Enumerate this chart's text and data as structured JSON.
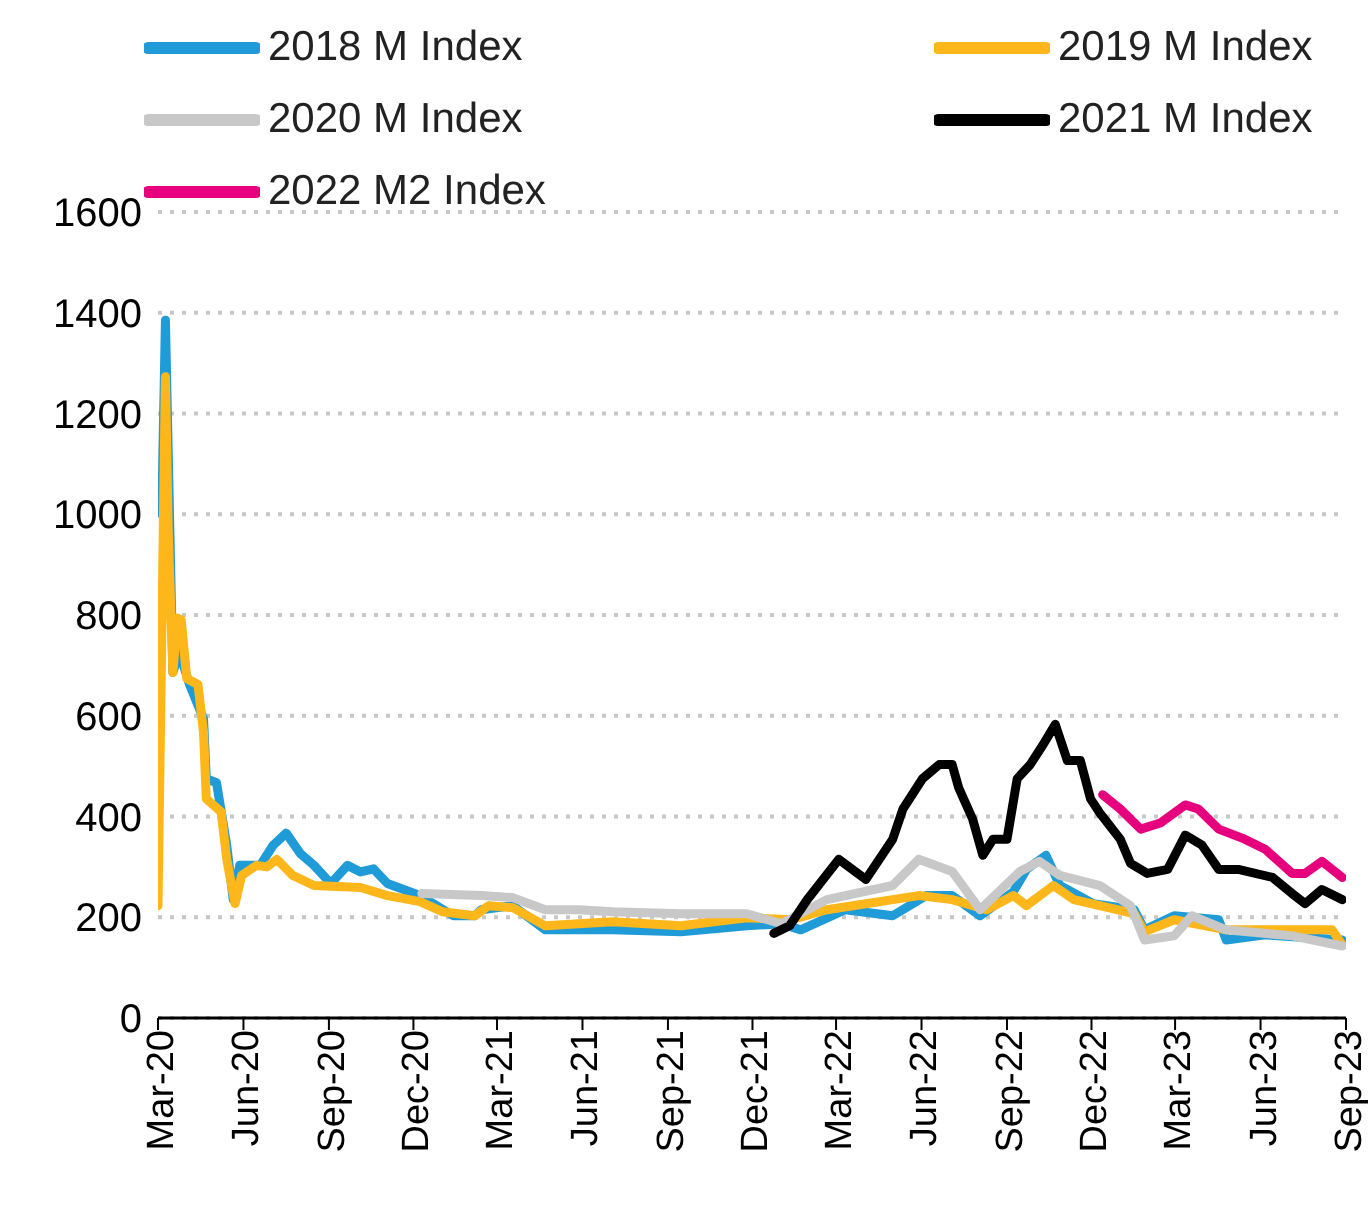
{
  "chart_data": {
    "type": "line",
    "xlim": [
      "2020-03-01",
      "2023-09-01"
    ],
    "xticks": [
      {
        "value": "2020-03",
        "label": "Mar-20"
      },
      {
        "value": "2020-06",
        "label": "Jun-20"
      },
      {
        "value": "2020-09",
        "label": "Sep-20"
      },
      {
        "value": "2020-12",
        "label": "Dec-20"
      },
      {
        "value": "2021-03",
        "label": "Mar-21"
      },
      {
        "value": "2021-06",
        "label": "Jun-21"
      },
      {
        "value": "2021-09",
        "label": "Sep-21"
      },
      {
        "value": "2021-12",
        "label": "Dec-21"
      },
      {
        "value": "2022-03",
        "label": "Mar-22"
      },
      {
        "value": "2022-06",
        "label": "Jun-22"
      },
      {
        "value": "2022-09",
        "label": "Sep-22"
      },
      {
        "value": "2022-12",
        "label": "Dec-22"
      },
      {
        "value": "2023-03",
        "label": "Mar-23"
      },
      {
        "value": "2023-06",
        "label": "Jun-23"
      },
      {
        "value": "2023-09",
        "label": "Sep-23"
      }
    ],
    "ylim": [
      0,
      1600
    ],
    "yticks": [
      0,
      200,
      400,
      600,
      800,
      1000,
      1200,
      1400,
      1600
    ],
    "grid": "y",
    "legend": "top",
    "marker": "none",
    "line_style": "solid",
    "series": [
      {
        "name": "2018 M Index",
        "color": "#1f9bd7",
        "x": [
          "2020-03-05",
          "2020-03-09",
          "2020-03-17",
          "2020-03-24",
          "2020-04-04",
          "2020-04-19",
          "2020-04-22",
          "2020-05-03",
          "2020-05-14",
          "2020-05-21",
          "2020-05-28",
          "2020-06-19",
          "2020-07-03",
          "2020-07-17",
          "2020-08-01",
          "2020-08-16",
          "2020-09-03",
          "2020-09-21",
          "2020-10-05",
          "2020-10-19",
          "2020-11-03",
          "2020-12-08",
          "2021-01-13",
          "2021-02-05",
          "2021-02-12",
          "2021-03-18",
          "2021-04-22",
          "2021-07-03",
          "2021-09-15",
          "2021-11-25",
          "2022-01-01",
          "2022-01-22",
          "2022-03-11",
          "2022-05-01",
          "2022-06-06",
          "2022-07-04",
          "2022-08-03",
          "2022-09-08",
          "2022-09-22",
          "2022-10-13",
          "2022-10-28",
          "2022-12-03",
          "2023-01-16",
          "2023-01-27",
          "2023-02-28",
          "2023-04-17",
          "2023-04-25",
          "2023-06-06",
          "2023-08-28"
        ],
        "values": [
          1000,
          1385,
          686,
          726,
          662,
          594,
          475,
          467,
          343,
          235,
          303,
          303,
          343,
          367,
          327,
          303,
          267,
          303,
          290,
          296,
          267,
          243,
          203,
          203,
          215,
          223,
          175,
          175,
          171,
          183,
          187,
          175,
          215,
          203,
          243,
          243,
          203,
          251,
          295,
          323,
          263,
          227,
          215,
          175,
          203,
          195,
          155,
          165,
          155
        ]
      },
      {
        "name": "2019 M Index",
        "color": "#fdb71a",
        "x": [
          "2020-03-01",
          "2020-03-09",
          "2020-03-12",
          "2020-03-17",
          "2020-03-22",
          "2020-03-26",
          "2020-04-01",
          "2020-04-13",
          "2020-04-19",
          "2020-04-22",
          "2020-05-08",
          "2020-05-14",
          "2020-05-23",
          "2020-05-30",
          "2020-06-15",
          "2020-06-26",
          "2020-07-07",
          "2020-07-24",
          "2020-08-16",
          "2020-10-05",
          "2020-11-03",
          "2020-12-08",
          "2021-01-01",
          "2021-02-05",
          "2021-02-20",
          "2021-03-18",
          "2021-04-22",
          "2021-07-03",
          "2021-09-15",
          "2021-11-25",
          "2022-01-12",
          "2022-02-19",
          "2022-05-29",
          "2022-07-04",
          "2022-08-10",
          "2022-09-08",
          "2022-09-22",
          "2022-10-21",
          "2022-11-12",
          "2023-01-16",
          "2023-01-27",
          "2023-02-28",
          "2023-04-25",
          "2023-08-17",
          "2023-08-28"
        ],
        "values": [
          223,
          1273,
          966,
          686,
          794,
          790,
          674,
          662,
          567,
          435,
          409,
          315,
          227,
          283,
          303,
          300,
          315,
          283,
          263,
          259,
          243,
          231,
          211,
          203,
          223,
          219,
          183,
          191,
          183,
          199,
          195,
          215,
          243,
          235,
          215,
          243,
          223,
          263,
          235,
          207,
          171,
          195,
          175,
          175,
          145
        ]
      },
      {
        "name": "2020 M Index",
        "color": "#c8c8c8",
        "x": [
          "2020-12-10",
          "2021-02-12",
          "2021-03-18",
          "2021-04-22",
          "2021-05-28",
          "2021-07-03",
          "2021-09-15",
          "2021-11-25",
          "2022-01-01",
          "2022-02-19",
          "2022-05-01",
          "2022-05-29",
          "2022-07-04",
          "2022-08-03",
          "2022-09-15",
          "2022-10-06",
          "2022-10-28",
          "2022-12-10",
          "2023-01-12",
          "2023-01-27",
          "2023-02-28",
          "2023-03-19",
          "2023-04-25",
          "2023-07-05",
          "2023-08-28"
        ],
        "values": [
          247,
          243,
          239,
          215,
          215,
          211,
          207,
          207,
          187,
          235,
          263,
          315,
          291,
          215,
          291,
          311,
          283,
          263,
          223,
          155,
          163,
          203,
          175,
          163,
          143
        ]
      },
      {
        "name": "2021 M Index",
        "color": "#000000",
        "x": [
          "2021-12-24",
          "2022-01-10",
          "2022-01-29",
          "2022-03-04",
          "2022-04-02",
          "2022-05-01",
          "2022-05-12",
          "2022-06-02",
          "2022-06-20",
          "2022-07-04",
          "2022-07-11",
          "2022-07-26",
          "2022-08-06",
          "2022-08-17",
          "2022-09-01",
          "2022-09-12",
          "2022-09-26",
          "2022-10-10",
          "2022-10-23",
          "2022-11-05",
          "2022-11-19",
          "2022-11-30",
          "2022-12-10",
          "2023-01-01",
          "2023-01-12",
          "2023-01-30",
          "2023-02-21",
          "2023-03-12",
          "2023-03-30",
          "2023-04-17",
          "2023-05-08",
          "2023-06-14",
          "2023-07-05",
          "2023-07-19",
          "2023-08-06",
          "2023-08-28"
        ],
        "values": [
          168,
          183,
          235,
          315,
          275,
          355,
          415,
          475,
          503,
          503,
          457,
          395,
          323,
          355,
          355,
          475,
          503,
          543,
          583,
          511,
          511,
          435,
          407,
          355,
          307,
          287,
          295,
          363,
          343,
          295,
          295,
          279,
          247,
          227,
          255,
          235
        ]
      },
      {
        "name": "2022 M2 Index",
        "color": "#e6007e",
        "x": [
          "2022-12-13",
          "2023-01-01",
          "2023-01-23",
          "2023-02-13",
          "2023-03-12",
          "2023-03-26",
          "2023-04-17",
          "2023-05-15",
          "2023-06-06",
          "2023-07-05",
          "2023-07-19",
          "2023-08-06",
          "2023-08-28"
        ],
        "values": [
          443,
          415,
          375,
          387,
          423,
          415,
          375,
          355,
          335,
          287,
          287,
          311,
          279
        ]
      }
    ]
  }
}
